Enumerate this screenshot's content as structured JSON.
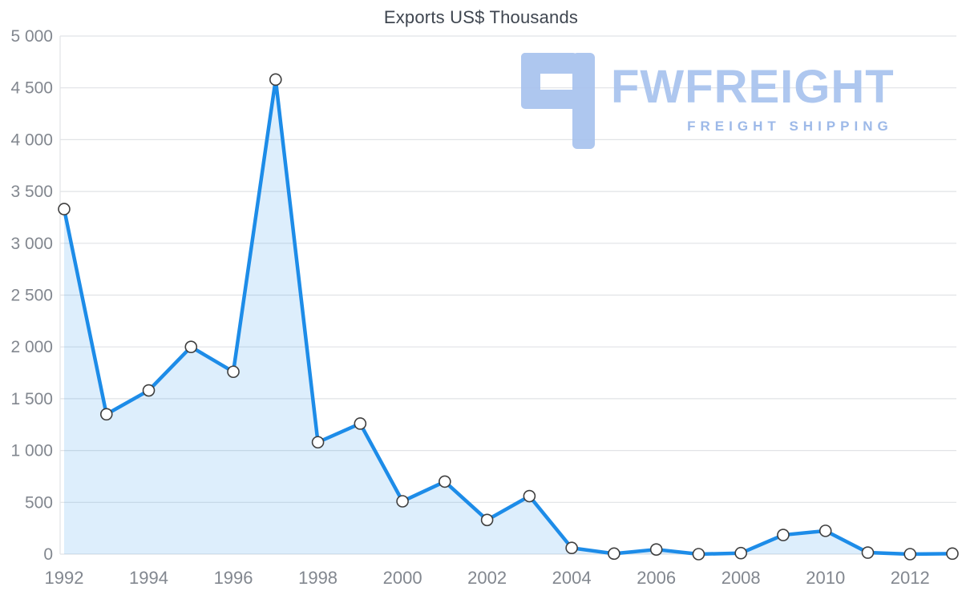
{
  "chart_data": {
    "type": "area",
    "title": "Exports US$ Thousands",
    "x": [
      1992,
      1993,
      1994,
      1995,
      1996,
      1997,
      1998,
      1999,
      2000,
      2001,
      2002,
      2003,
      2004,
      2005,
      2006,
      2007,
      2008,
      2009,
      2010,
      2011,
      2012,
      2013
    ],
    "values": [
      3330,
      1350,
      1580,
      2000,
      1760,
      4580,
      1080,
      1260,
      510,
      700,
      330,
      560,
      60,
      5,
      45,
      0,
      10,
      185,
      225,
      15,
      0,
      5
    ],
    "xlabel": "",
    "ylabel": "",
    "ylim": [
      0,
      5000
    ],
    "grid": "horizontal",
    "legend": "none",
    "y_ticks": [
      0,
      500,
      1000,
      1500,
      2000,
      2500,
      3000,
      3500,
      4000,
      4500,
      5000
    ],
    "y_tick_labels": [
      "0",
      "500",
      "1 000",
      "1 500",
      "2 000",
      "2 500",
      "3 000",
      "3 500",
      "4 000",
      "4 500",
      "5 000"
    ],
    "x_ticks": [
      1992,
      1994,
      1996,
      1998,
      2000,
      2002,
      2004,
      2006,
      2008,
      2010,
      2012
    ],
    "x_tick_labels": [
      "1992",
      "1994",
      "1996",
      "1998",
      "2000",
      "2002",
      "2004",
      "2006",
      "2008",
      "2010",
      "2012"
    ],
    "colors": {
      "line": "#1d8ce8",
      "fill": "rgba(30, 140, 232, 0.15)",
      "marker_fill": "#ffffff",
      "marker_stroke": "#3f3f3f",
      "grid": "#e1e3e6",
      "axis_text": "#82878f",
      "title_text": "#3f4650"
    }
  },
  "watermark": {
    "brand": "FWFREIGHT",
    "tagline": "FREIGHT SHIPPING",
    "color_brand": "#a6c1ee",
    "color_tagline": "#93b2e6",
    "color_logo": "#a6c1ee"
  }
}
